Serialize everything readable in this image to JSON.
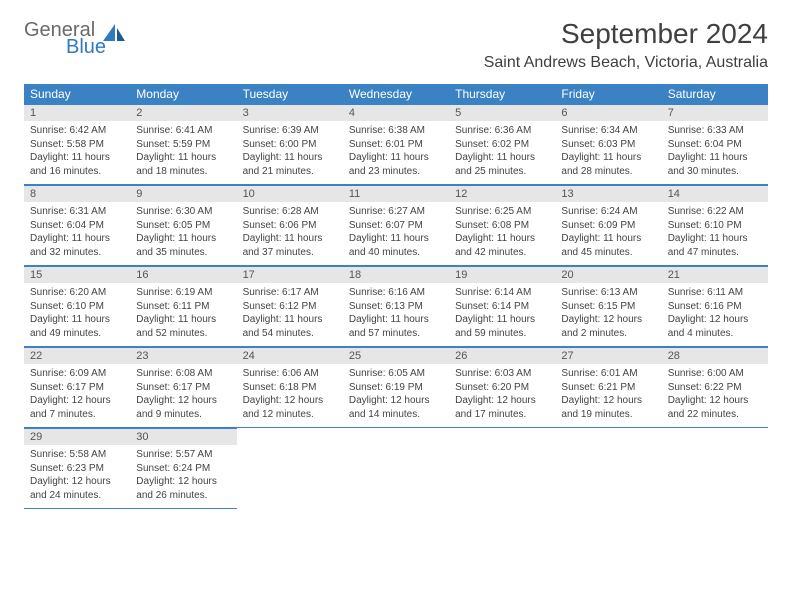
{
  "logo": {
    "word1": "General",
    "word2": "Blue"
  },
  "title": "September 2024",
  "location": "Saint Andrews Beach, Victoria, Australia",
  "colors": {
    "header_bg": "#3a82c4",
    "header_text": "#ffffff",
    "daynum_bg": "#e6e6e6",
    "border": "#3a82c4",
    "text": "#444444",
    "logo_gray": "#6a6a6a",
    "logo_blue": "#2f7bbf"
  },
  "day_headers": [
    "Sunday",
    "Monday",
    "Tuesday",
    "Wednesday",
    "Thursday",
    "Friday",
    "Saturday"
  ],
  "weeks": [
    [
      {
        "n": "1",
        "sr": "Sunrise: 6:42 AM",
        "ss": "Sunset: 5:58 PM",
        "dl": "Daylight: 11 hours and 16 minutes."
      },
      {
        "n": "2",
        "sr": "Sunrise: 6:41 AM",
        "ss": "Sunset: 5:59 PM",
        "dl": "Daylight: 11 hours and 18 minutes."
      },
      {
        "n": "3",
        "sr": "Sunrise: 6:39 AM",
        "ss": "Sunset: 6:00 PM",
        "dl": "Daylight: 11 hours and 21 minutes."
      },
      {
        "n": "4",
        "sr": "Sunrise: 6:38 AM",
        "ss": "Sunset: 6:01 PM",
        "dl": "Daylight: 11 hours and 23 minutes."
      },
      {
        "n": "5",
        "sr": "Sunrise: 6:36 AM",
        "ss": "Sunset: 6:02 PM",
        "dl": "Daylight: 11 hours and 25 minutes."
      },
      {
        "n": "6",
        "sr": "Sunrise: 6:34 AM",
        "ss": "Sunset: 6:03 PM",
        "dl": "Daylight: 11 hours and 28 minutes."
      },
      {
        "n": "7",
        "sr": "Sunrise: 6:33 AM",
        "ss": "Sunset: 6:04 PM",
        "dl": "Daylight: 11 hours and 30 minutes."
      }
    ],
    [
      {
        "n": "8",
        "sr": "Sunrise: 6:31 AM",
        "ss": "Sunset: 6:04 PM",
        "dl": "Daylight: 11 hours and 32 minutes."
      },
      {
        "n": "9",
        "sr": "Sunrise: 6:30 AM",
        "ss": "Sunset: 6:05 PM",
        "dl": "Daylight: 11 hours and 35 minutes."
      },
      {
        "n": "10",
        "sr": "Sunrise: 6:28 AM",
        "ss": "Sunset: 6:06 PM",
        "dl": "Daylight: 11 hours and 37 minutes."
      },
      {
        "n": "11",
        "sr": "Sunrise: 6:27 AM",
        "ss": "Sunset: 6:07 PM",
        "dl": "Daylight: 11 hours and 40 minutes."
      },
      {
        "n": "12",
        "sr": "Sunrise: 6:25 AM",
        "ss": "Sunset: 6:08 PM",
        "dl": "Daylight: 11 hours and 42 minutes."
      },
      {
        "n": "13",
        "sr": "Sunrise: 6:24 AM",
        "ss": "Sunset: 6:09 PM",
        "dl": "Daylight: 11 hours and 45 minutes."
      },
      {
        "n": "14",
        "sr": "Sunrise: 6:22 AM",
        "ss": "Sunset: 6:10 PM",
        "dl": "Daylight: 11 hours and 47 minutes."
      }
    ],
    [
      {
        "n": "15",
        "sr": "Sunrise: 6:20 AM",
        "ss": "Sunset: 6:10 PM",
        "dl": "Daylight: 11 hours and 49 minutes."
      },
      {
        "n": "16",
        "sr": "Sunrise: 6:19 AM",
        "ss": "Sunset: 6:11 PM",
        "dl": "Daylight: 11 hours and 52 minutes."
      },
      {
        "n": "17",
        "sr": "Sunrise: 6:17 AM",
        "ss": "Sunset: 6:12 PM",
        "dl": "Daylight: 11 hours and 54 minutes."
      },
      {
        "n": "18",
        "sr": "Sunrise: 6:16 AM",
        "ss": "Sunset: 6:13 PM",
        "dl": "Daylight: 11 hours and 57 minutes."
      },
      {
        "n": "19",
        "sr": "Sunrise: 6:14 AM",
        "ss": "Sunset: 6:14 PM",
        "dl": "Daylight: 11 hours and 59 minutes."
      },
      {
        "n": "20",
        "sr": "Sunrise: 6:13 AM",
        "ss": "Sunset: 6:15 PM",
        "dl": "Daylight: 12 hours and 2 minutes."
      },
      {
        "n": "21",
        "sr": "Sunrise: 6:11 AM",
        "ss": "Sunset: 6:16 PM",
        "dl": "Daylight: 12 hours and 4 minutes."
      }
    ],
    [
      {
        "n": "22",
        "sr": "Sunrise: 6:09 AM",
        "ss": "Sunset: 6:17 PM",
        "dl": "Daylight: 12 hours and 7 minutes."
      },
      {
        "n": "23",
        "sr": "Sunrise: 6:08 AM",
        "ss": "Sunset: 6:17 PM",
        "dl": "Daylight: 12 hours and 9 minutes."
      },
      {
        "n": "24",
        "sr": "Sunrise: 6:06 AM",
        "ss": "Sunset: 6:18 PM",
        "dl": "Daylight: 12 hours and 12 minutes."
      },
      {
        "n": "25",
        "sr": "Sunrise: 6:05 AM",
        "ss": "Sunset: 6:19 PM",
        "dl": "Daylight: 12 hours and 14 minutes."
      },
      {
        "n": "26",
        "sr": "Sunrise: 6:03 AM",
        "ss": "Sunset: 6:20 PM",
        "dl": "Daylight: 12 hours and 17 minutes."
      },
      {
        "n": "27",
        "sr": "Sunrise: 6:01 AM",
        "ss": "Sunset: 6:21 PM",
        "dl": "Daylight: 12 hours and 19 minutes."
      },
      {
        "n": "28",
        "sr": "Sunrise: 6:00 AM",
        "ss": "Sunset: 6:22 PM",
        "dl": "Daylight: 12 hours and 22 minutes."
      }
    ],
    [
      {
        "n": "29",
        "sr": "Sunrise: 5:58 AM",
        "ss": "Sunset: 6:23 PM",
        "dl": "Daylight: 12 hours and 24 minutes."
      },
      {
        "n": "30",
        "sr": "Sunrise: 5:57 AM",
        "ss": "Sunset: 6:24 PM",
        "dl": "Daylight: 12 hours and 26 minutes."
      },
      null,
      null,
      null,
      null,
      null
    ]
  ]
}
